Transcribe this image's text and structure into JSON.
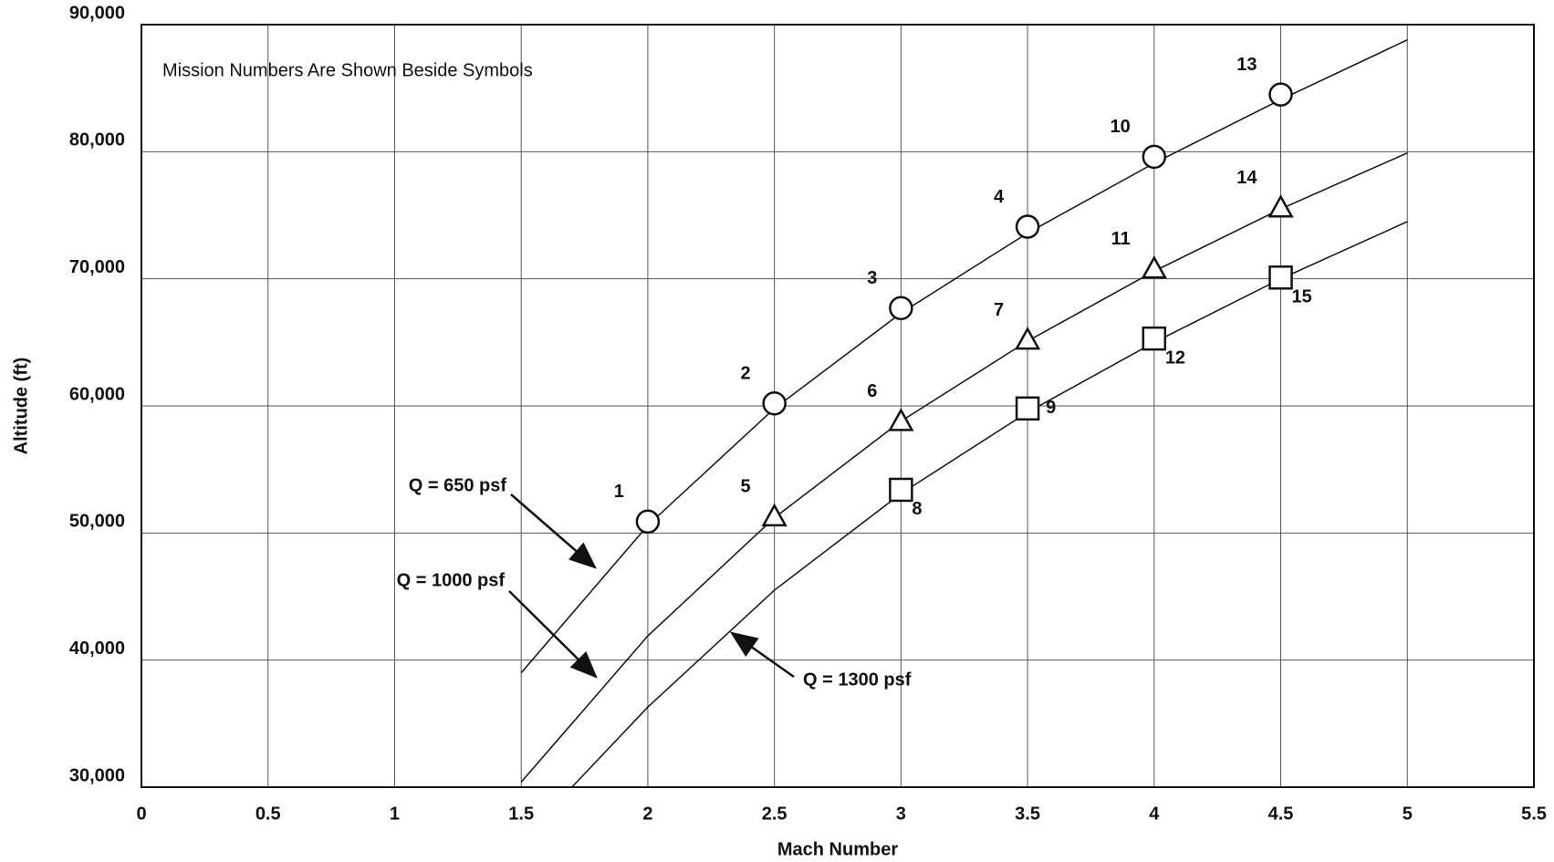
{
  "chart_data": {
    "type": "scatter",
    "annotation": "Mission Numbers Are Shown Beside Symbols",
    "x_label": "Mach Number",
    "y_label": "Altitude (ft)",
    "xlim": [
      0,
      5.5
    ],
    "xticks": [
      0,
      0.5,
      1,
      1.5,
      2,
      2.5,
      3,
      3.5,
      4,
      4.5,
      5,
      5.5
    ],
    "ylim": [
      30000,
      90000
    ],
    "yticks": [
      {
        "value": 30000,
        "label": "30,000"
      },
      {
        "value": 40000,
        "label": "40,000"
      },
      {
        "value": 50000,
        "label": "50,000"
      },
      {
        "value": 60000,
        "label": "60,000"
      },
      {
        "value": 70000,
        "label": "70,000"
      },
      {
        "value": 80000,
        "label": "80,000"
      },
      {
        "value": 90000,
        "label": "90,000"
      }
    ],
    "grid": true,
    "series": [
      {
        "marker": "circle",
        "x": [
          2,
          2.5,
          3,
          3.5,
          4,
          4.5
        ],
        "values": [
          50900,
          60200,
          67700,
          74100,
          79600,
          84500
        ],
        "labels": [
          "1",
          "2",
          "3",
          "4",
          "10",
          "13"
        ]
      },
      {
        "marker": "triangle",
        "x": [
          2.5,
          3,
          3.5,
          4,
          4.5
        ],
        "values": [
          51300,
          58800,
          65200,
          70800,
          75600
        ],
        "labels": [
          "5",
          "6",
          "7",
          "11",
          "14"
        ]
      },
      {
        "marker": "square",
        "x": [
          3,
          3.5,
          4,
          4.5
        ],
        "values": [
          53400,
          59800,
          65300,
          70100
        ],
        "labels": [
          "8",
          "9",
          "12",
          "15"
        ]
      }
    ],
    "curves": [
      {
        "name": "Q = 650 psf",
        "x": [
          1.5,
          2,
          2.5,
          3,
          3.5,
          4,
          4.5,
          5
        ],
        "values": [
          39000,
          50600,
          59800,
          67300,
          73600,
          79100,
          84100,
          88800
        ]
      },
      {
        "name": "Q = 1000 psf",
        "x": [
          1.5,
          2,
          2.5,
          3,
          3.5,
          4,
          4.5,
          5
        ],
        "values": [
          30400,
          41900,
          51200,
          58800,
          65100,
          70600,
          75500,
          79900
        ]
      },
      {
        "name": "Q = 1300 psf",
        "x": [
          1.7,
          2,
          2.5,
          3,
          3.5,
          4,
          4.5,
          5
        ],
        "values": [
          30000,
          36300,
          45500,
          53100,
          59500,
          65000,
          70000,
          74500
        ]
      }
    ]
  }
}
